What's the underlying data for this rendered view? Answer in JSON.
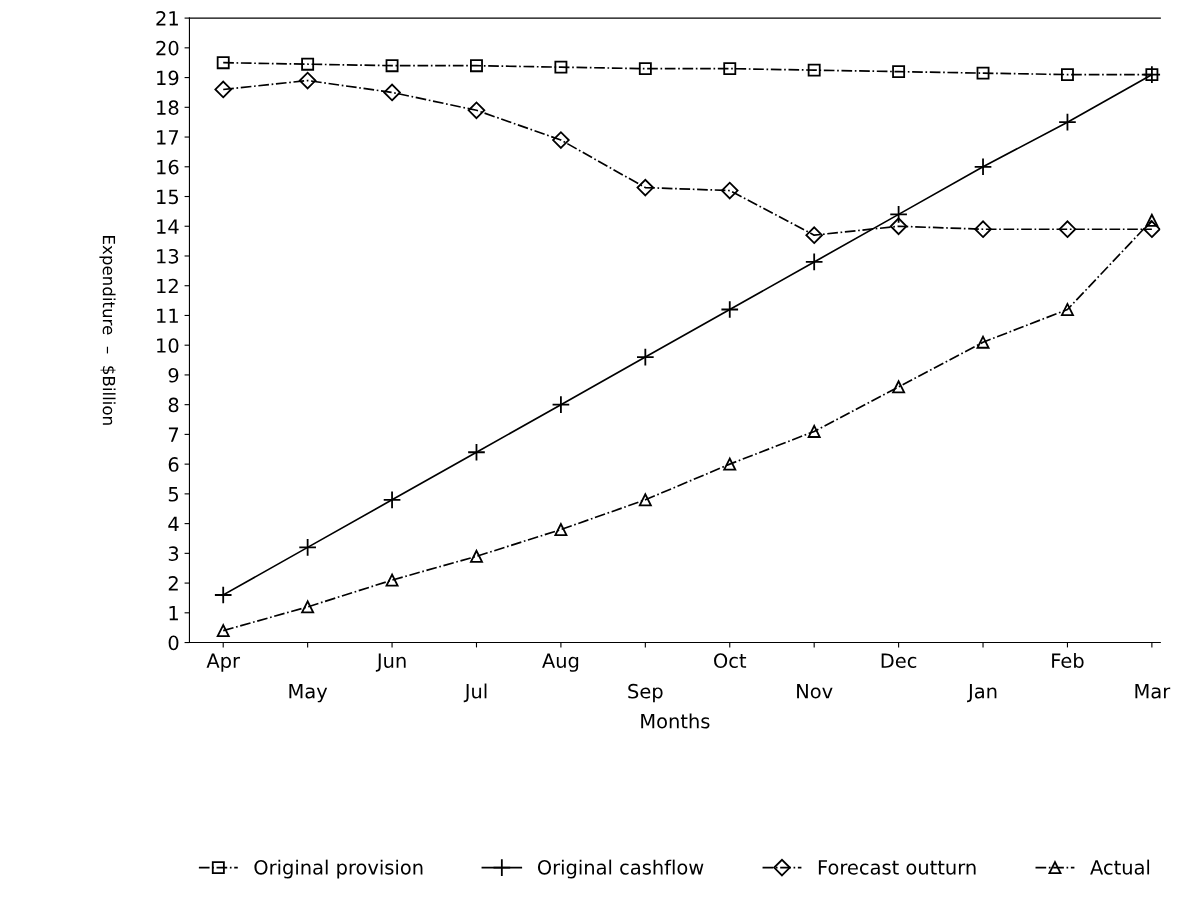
{
  "chart_data": {
    "type": "line",
    "xlabel": "Months",
    "ylabel": "Expenditure  –  $Billion",
    "categories": [
      "Apr",
      "May",
      "Jun",
      "Jul",
      "Aug",
      "Sep",
      "Oct",
      "Nov",
      "Dec",
      "Jan",
      "Feb",
      "Mar"
    ],
    "ylim": [
      0,
      21
    ],
    "yticks": [
      0,
      1,
      2,
      3,
      4,
      5,
      6,
      7,
      8,
      9,
      10,
      11,
      12,
      13,
      14,
      15,
      16,
      17,
      18,
      19,
      20,
      21
    ],
    "grid": false,
    "legend": "bottom",
    "line_style": "dashed",
    "series": [
      {
        "name": "Original provision",
        "color": "#000000",
        "marker": "square",
        "values": [
          19.5,
          19.45,
          19.4,
          19.4,
          19.35,
          19.3,
          19.3,
          19.25,
          19.2,
          19.15,
          19.1,
          19.1
        ]
      },
      {
        "name": "Original cashflow",
        "color": "#000000",
        "marker": "cross",
        "line_style": "solid",
        "values": [
          1.6,
          3.2,
          4.8,
          6.4,
          8.0,
          9.6,
          11.2,
          12.8,
          14.4,
          16.0,
          17.5,
          19.1
        ]
      },
      {
        "name": "Forecast outturn",
        "color": "#000000",
        "marker": "diamond",
        "values": [
          18.6,
          18.9,
          18.5,
          17.9,
          16.9,
          15.3,
          15.2,
          13.7,
          14.0,
          13.9,
          13.9,
          13.9
        ]
      },
      {
        "name": "Actual",
        "color": "#000000",
        "marker": "triangle",
        "values": [
          0.4,
          1.2,
          2.1,
          2.9,
          3.8,
          4.8,
          6.0,
          7.1,
          8.6,
          10.1,
          11.2,
          14.2
        ]
      }
    ]
  }
}
